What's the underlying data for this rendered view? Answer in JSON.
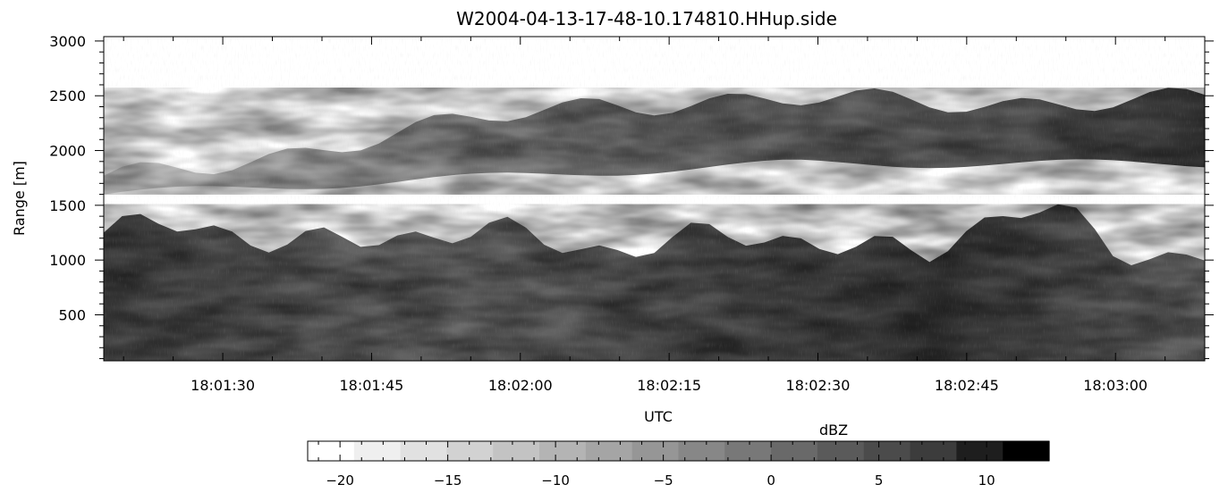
{
  "chart_data": [
    {
      "type": "heatmap",
      "title": "W2004-04-13-17-48-10.174810.HHup.side",
      "xlabel": "UTC",
      "ylabel": "Range [m]",
      "x_ticklabels": [
        "18:01:30",
        "18:01:45",
        "18:02:00",
        "18:02:15",
        "18:02:30",
        "18:02:45",
        "18:03:00"
      ],
      "xlim": [
        "18:01:18",
        "18:03:09"
      ],
      "y_ticks": [
        500,
        1000,
        1500,
        2000,
        2500,
        3000
      ],
      "ylim": [
        80,
        3040
      ],
      "colormap": "grayscale (white = low, black = high)",
      "echo_layers": [
        {
          "name": "upper cloud layer",
          "start_time": "18:01:18",
          "end_time": "18:03:09",
          "base_start_m": 1600,
          "base_end_m": 1880,
          "top_start_m": 1720,
          "top_end_m": 2450,
          "peak_dBZ": 7
        },
        {
          "name": "lower cloud layer",
          "start_time": "18:01:18",
          "end_time": "18:03:09",
          "base_m": 80,
          "top_start_m": 1250,
          "top_end_m": 1100,
          "peak_dBZ": 10
        }
      ]
    },
    {
      "type": "heatmap",
      "title": "dBZ",
      "ticks": [
        -20,
        -15,
        -10,
        -5,
        0,
        5,
        10
      ],
      "range": [
        -21.5,
        12.9
      ],
      "n_bins": 16,
      "colors": [
        "#ffffff",
        "#efefef",
        "#e1e1e1",
        "#d2d2d2",
        "#c3c3c3",
        "#b4b4b4",
        "#a5a5a5",
        "#969696",
        "#878787",
        "#787878",
        "#696969",
        "#5a5a5a",
        "#4b4b4b",
        "#3c3c3c",
        "#1e1e1e",
        "#000000"
      ]
    }
  ]
}
